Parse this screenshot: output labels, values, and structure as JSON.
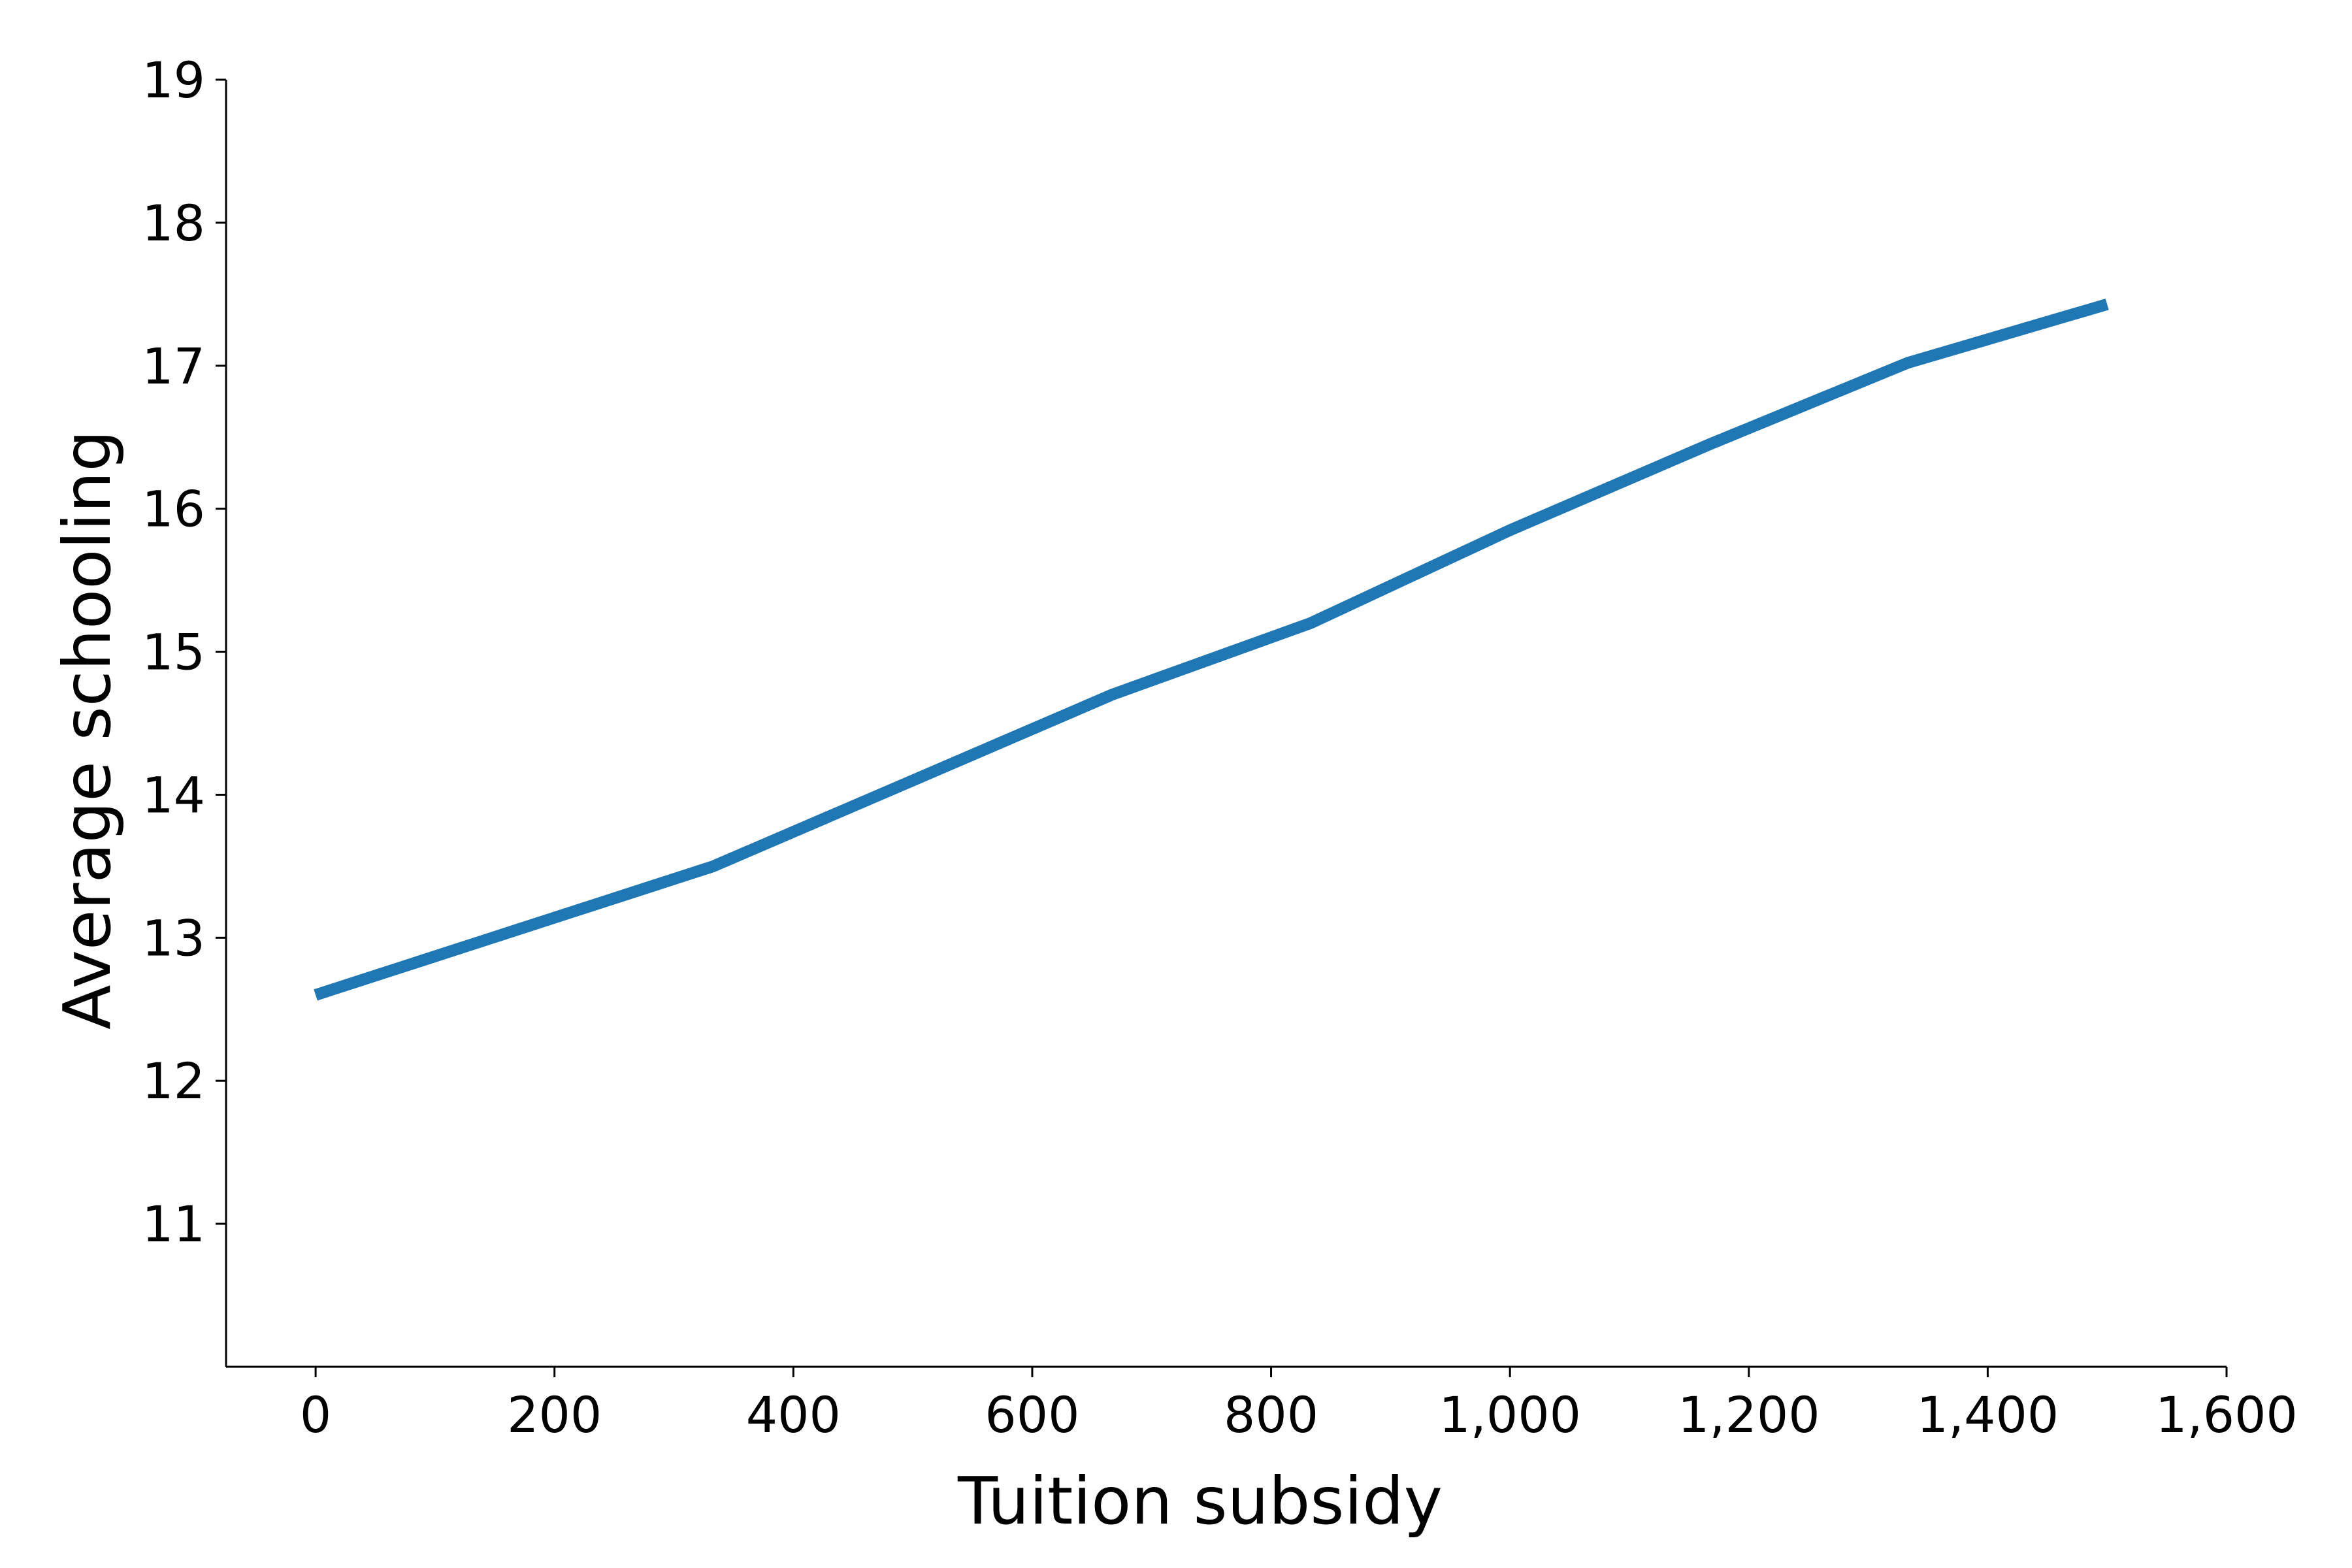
{
  "chart_data": {
    "type": "line",
    "title": "",
    "xlabel": "Tuition subsidy",
    "ylabel": "Average schooling",
    "xlim": [
      -75,
      1600
    ],
    "ylim": [
      10,
      19
    ],
    "grid": false,
    "x_ticks": [
      0,
      200,
      400,
      600,
      800,
      1000,
      1200,
      1400,
      1600
    ],
    "x_tick_labels": [
      "0",
      "200",
      "400",
      "600",
      "800",
      "1,000",
      "1,200",
      "1,400",
      "1,600"
    ],
    "y_ticks": [
      11,
      12,
      13,
      14,
      15,
      16,
      17,
      18,
      19
    ],
    "y_tick_labels": [
      "11",
      "12",
      "13",
      "14",
      "15",
      "16",
      "17",
      "18",
      "19"
    ],
    "series": [
      {
        "color": "#1f77b4",
        "x": [
          0,
          333,
          500,
          667,
          833,
          1000,
          1167,
          1333,
          1500
        ],
        "y": [
          12.6,
          13.5,
          14.1,
          14.7,
          15.2,
          15.85,
          16.45,
          17.02,
          17.43
        ]
      }
    ]
  }
}
